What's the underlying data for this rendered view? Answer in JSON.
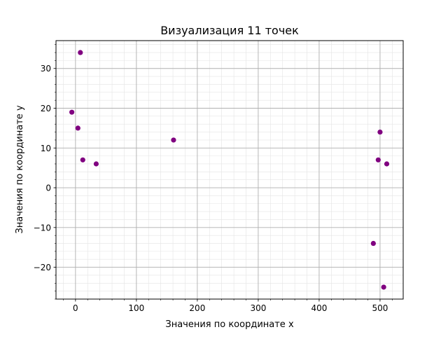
{
  "chart_data": {
    "type": "scatter",
    "title": "Визуализация 11 точек",
    "xlabel": "Значения по координате x",
    "ylabel": "Значения по координате y",
    "xlim": [
      -32,
      538
    ],
    "ylim": [
      -28,
      37
    ],
    "x_ticks": [
      0,
      100,
      200,
      300,
      400,
      500
    ],
    "y_ticks": [
      -20,
      -10,
      0,
      10,
      20,
      30
    ],
    "x_minor_step": 20,
    "y_minor_step": 2,
    "grid": true,
    "minor_grid": true,
    "marker_color": "#800080",
    "points": [
      {
        "x": -6,
        "y": 19
      },
      {
        "x": 4,
        "y": 15
      },
      {
        "x": 8,
        "y": 34
      },
      {
        "x": 12,
        "y": 7
      },
      {
        "x": 34,
        "y": 6
      },
      {
        "x": 161,
        "y": 12
      },
      {
        "x": 489,
        "y": -14
      },
      {
        "x": 497,
        "y": 7
      },
      {
        "x": 500,
        "y": 14
      },
      {
        "x": 506,
        "y": -25
      },
      {
        "x": 511,
        "y": 6
      }
    ]
  }
}
